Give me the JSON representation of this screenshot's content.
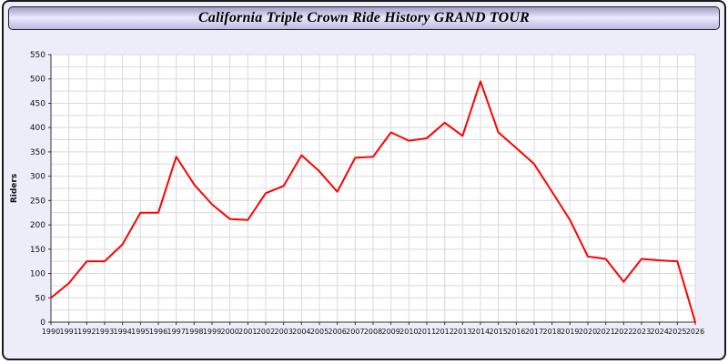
{
  "page": {
    "title": "California Triple Crown Ride History GRAND TOUR"
  },
  "chart_data": {
    "type": "line",
    "title": "California Triple Crown Ride History GRAND TOUR",
    "xlabel": "",
    "ylabel": "Riders",
    "ylim": [
      0,
      550
    ],
    "ytick_step": 50,
    "minor_grid_step": 25,
    "grid": true,
    "legend": "none",
    "line_color": "#ff0000",
    "x": [
      1990,
      1991,
      1992,
      1993,
      1994,
      1995,
      1996,
      1997,
      1998,
      1999,
      2000,
      2001,
      2002,
      2003,
      2004,
      2005,
      2006,
      2007,
      2008,
      2009,
      2010,
      2011,
      2012,
      2013,
      2014,
      2015,
      2016,
      2017,
      2018,
      2019,
      2020,
      2021,
      2022,
      2023,
      2024,
      2025,
      2026
    ],
    "values": [
      50,
      80,
      125,
      125,
      160,
      225,
      225,
      340,
      283,
      242,
      212,
      210,
      265,
      280,
      343,
      310,
      268,
      338,
      340,
      390,
      373,
      378,
      410,
      383,
      495,
      390,
      358,
      325,
      268,
      210,
      135,
      130,
      83,
      130,
      127,
      125,
      0
    ],
    "y_ticks": [
      0,
      50,
      100,
      150,
      200,
      250,
      300,
      350,
      400,
      450,
      500,
      550
    ]
  },
  "colors": {
    "page_background": "#ededfa",
    "plot_background": "#ffffff",
    "grid": "#d9d9d9",
    "axis": "#333333",
    "line": "#ff0000"
  }
}
